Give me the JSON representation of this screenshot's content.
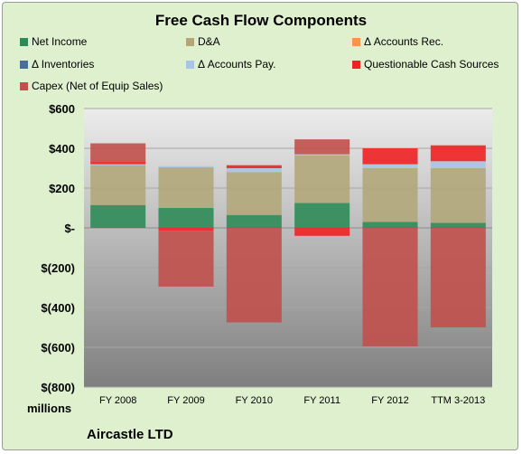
{
  "chart_data": {
    "type": "bar",
    "stacked": true,
    "title": "Free Cash Flow Components",
    "categories": [
      "FY 2008",
      "FY 2009",
      "FY 2010",
      "FY 2011",
      "FY 2012",
      "TTM 3-2013"
    ],
    "series": [
      {
        "name": "Net Income",
        "color": "#2e8b57",
        "values": [
          115,
          100,
          65,
          125,
          30,
          25
        ]
      },
      {
        "name": "D&A",
        "color": "#b3a77a",
        "values": [
          200,
          200,
          215,
          240,
          270,
          275
        ]
      },
      {
        "name": "Δ Accounts Rec.",
        "color": "#f79646",
        "values": [
          0,
          5,
          0,
          0,
          0,
          0
        ]
      },
      {
        "name": "Δ Inventories",
        "color": "#4a6f96",
        "values": [
          0,
          0,
          0,
          0,
          0,
          0
        ]
      },
      {
        "name": "Δ Accounts Pay.",
        "color": "#a9c4e5",
        "values": [
          5,
          5,
          20,
          5,
          20,
          35
        ]
      },
      {
        "name": "Questionable Cash Sources",
        "color": "#ee2222",
        "values": [
          15,
          -15,
          15,
          -40,
          80,
          80
        ]
      },
      {
        "name": "Capex (Net of Equip Sales)",
        "color": "#c0504d",
        "values": [
          90,
          -280,
          -475,
          75,
          -595,
          -500
        ]
      }
    ],
    "ylim": [
      -800,
      600
    ],
    "yticks": [
      600,
      400,
      200,
      0,
      -200,
      -400,
      -600,
      -800
    ],
    "ytick_labels": [
      "$600",
      "$400",
      "$200",
      "$-",
      "$(200)",
      "$(400)",
      "$(600)",
      "$(800)"
    ],
    "ylabel": "millions",
    "legend_position": "top",
    "grid": true,
    "company": "Aircastle LTD"
  }
}
